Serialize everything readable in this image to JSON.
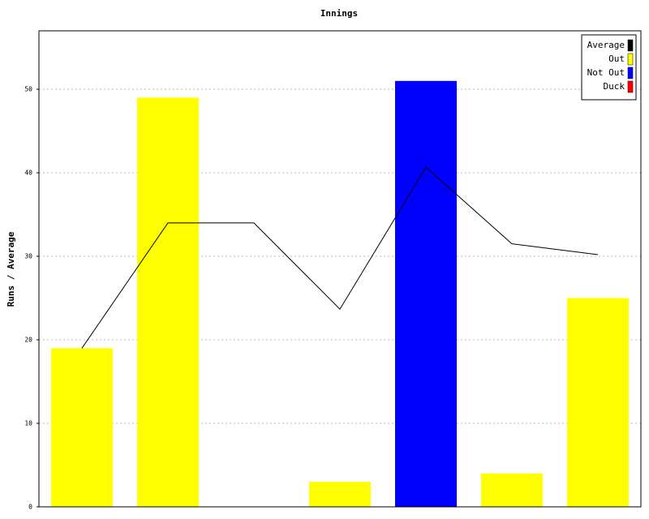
{
  "chart_data": {
    "type": "bar",
    "title": "Innings",
    "y_label": "Runs / Average",
    "categories": [
      null,
      null,
      null,
      null,
      null,
      null,
      null
    ],
    "values": [
      19,
      49,
      0,
      3,
      51,
      4,
      25
    ],
    "colors": [
      "#ffff00",
      "#ffff00",
      "#0000ff",
      "#ffff00",
      "#0000ff",
      "#ffff00",
      "#ffff00"
    ],
    "line": {
      "name": "Average",
      "color": "#000000",
      "values": [
        19,
        34,
        34,
        23.67,
        40.67,
        31.5,
        30.2
      ]
    },
    "legend": [
      {
        "name": "Average",
        "color": "#000000"
      },
      {
        "name": "Out",
        "color": "#ffff00"
      },
      {
        "name": "Not Out",
        "color": "#0000ff"
      },
      {
        "name": "Duck",
        "color": "#ff0000"
      }
    ],
    "legend_position": "upper right",
    "ylim": [
      0,
      57
    ],
    "yticks": [
      0,
      10,
      20,
      30,
      40,
      50
    ],
    "grid": true
  }
}
